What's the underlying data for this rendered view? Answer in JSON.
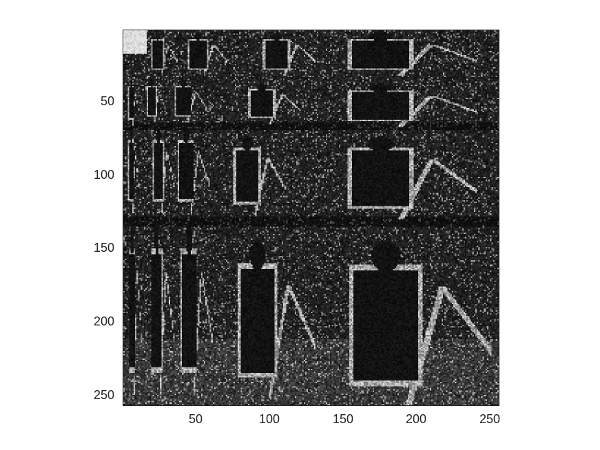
{
  "figure": {
    "image_description_kind": "grayscale wavelet-decomposition style image of a photographer with a tripod",
    "colormap": "gray",
    "background_color": "#ffffff",
    "axes_color": "#262626"
  },
  "axes": {
    "x_ticks": [
      "50",
      "100",
      "150",
      "200",
      "250"
    ],
    "y_ticks": [
      "50",
      "100",
      "150",
      "200",
      "250"
    ],
    "x_range": [
      1,
      256
    ],
    "y_range": [
      1,
      256
    ]
  }
}
